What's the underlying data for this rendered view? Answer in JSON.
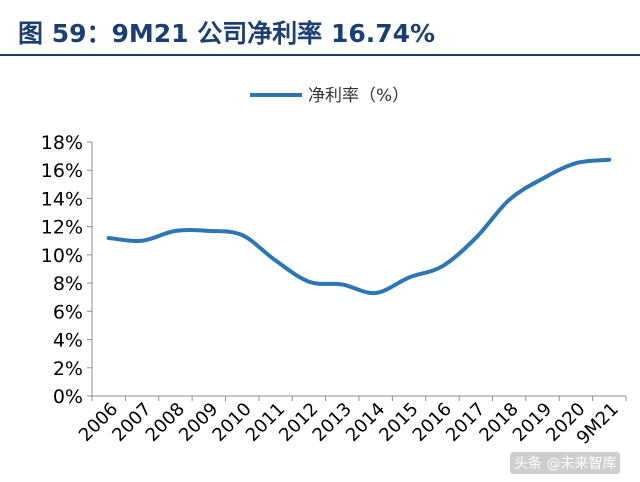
{
  "header": {
    "title": "图 59：9M21 公司净利率 16.74%"
  },
  "watermark": {
    "text": "头条 @未来智库"
  },
  "chart_data": {
    "type": "line",
    "title": "",
    "xlabel": "",
    "ylabel": "",
    "categories": [
      "2006",
      "2007",
      "2008",
      "2009",
      "2010",
      "2011",
      "2012",
      "2013",
      "2014",
      "2015",
      "2016",
      "2017",
      "2018",
      "2019",
      "2020",
      "9M21"
    ],
    "series": [
      {
        "name": "净利率（%）",
        "color": "#2e75b6",
        "values": [
          11.2,
          11.0,
          11.7,
          11.7,
          11.4,
          9.6,
          8.1,
          7.9,
          7.3,
          8.4,
          9.2,
          11.2,
          13.9,
          15.4,
          16.5,
          16.74
        ]
      }
    ],
    "ylim": [
      0,
      18
    ],
    "yticks": [
      "0%",
      "2%",
      "4%",
      "6%",
      "8%",
      "10%",
      "12%",
      "14%",
      "16%",
      "18%"
    ],
    "y_tick_step": 2,
    "grid": false,
    "legend": "top-center"
  }
}
